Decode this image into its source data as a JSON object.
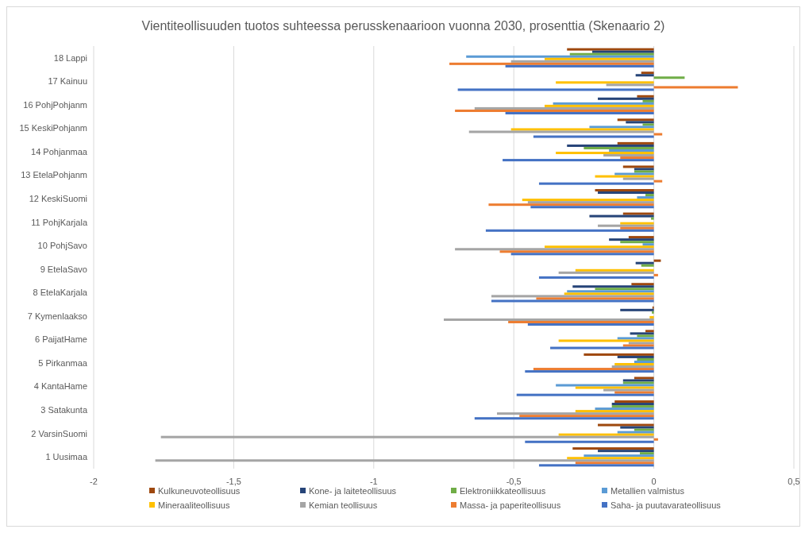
{
  "chart_data": {
    "type": "bar",
    "orientation": "horizontal",
    "title": "Vientiteollisuuden tuotos suhteessa perusskenaarioon vuonna 2030, prosenttia (Skenaario 2)",
    "categories": [
      "18 Lappi",
      "17 Kainuu",
      "16 PohjPohjanm",
      "15 KeskiPohjanm",
      "14 Pohjanmaa",
      "13 EtelaPohjanm",
      "12 KeskiSuomi",
      "11 PohjKarjala",
      "10 PohjSavo",
      "9 EtelaSavo",
      "8 EtelaKarjala",
      "7 Kymenlaakso",
      "6 PaijatHame",
      "5 Pirkanmaa",
      "4 KantaHame",
      "3 Satakunta",
      "2 VarsinSuomi",
      "1 Uusimaa"
    ],
    "series": [
      {
        "name": "Kulkuneuvoteollisuus",
        "color": "#9e480e",
        "values": [
          -0.31,
          -0.045,
          -0.06,
          -0.13,
          -0.13,
          -0.11,
          -0.21,
          -0.11,
          -0.09,
          0.025,
          -0.08,
          -0.005,
          -0.03,
          -0.25,
          -0.07,
          -0.14,
          -0.2,
          -0.29
        ]
      },
      {
        "name": "Kone- ja laiteteollisuus",
        "color": "#264478",
        "values": [
          -0.22,
          -0.065,
          -0.2,
          -0.1,
          -0.31,
          -0.07,
          -0.2,
          -0.23,
          -0.16,
          -0.065,
          -0.29,
          -0.12,
          -0.085,
          -0.13,
          -0.11,
          -0.15,
          -0.12,
          -0.2
        ]
      },
      {
        "name": "Elektroniikkateollisuus",
        "color": "#70ad47",
        "values": [
          -0.3,
          0.11,
          -0.04,
          -0.04,
          -0.25,
          -0.07,
          -0.03,
          -0.01,
          -0.12,
          -0.045,
          -0.21,
          -0.007,
          -0.06,
          -0.06,
          -0.11,
          -0.15,
          -0.07,
          -0.05
        ]
      },
      {
        "name": "Metallien valmistus",
        "color": "#5b9bd5",
        "values": [
          -0.67,
          0,
          -0.36,
          -0.23,
          -0.16,
          -0.14,
          -0.06,
          0,
          -0.04,
          0,
          -0.31,
          0,
          -0.13,
          -0.07,
          -0.35,
          -0.21,
          -0.13,
          -0.25
        ]
      },
      {
        "name": "Mineraaliteollisuus",
        "color": "#ffc000",
        "values": [
          -0.39,
          -0.35,
          -0.39,
          -0.51,
          -0.35,
          -0.21,
          -0.47,
          -0.12,
          -0.39,
          -0.28,
          -0.32,
          -0.015,
          -0.34,
          -0.14,
          -0.28,
          -0.28,
          -0.34,
          -0.31
        ]
      },
      {
        "name": "Kemian teollisuus",
        "color": "#a5a5a5",
        "values": [
          -0.51,
          -0.17,
          -0.64,
          -0.66,
          -0.18,
          -0.11,
          -0.45,
          -0.2,
          -0.71,
          -0.34,
          -0.58,
          -0.75,
          -0.09,
          -0.15,
          -0.18,
          -0.56,
          -1.76,
          -1.78
        ]
      },
      {
        "name": "Massa- ja paperiteollisuus",
        "color": "#ed7d31",
        "values": [
          -0.73,
          0.3,
          -0.71,
          0.03,
          -0.12,
          0.03,
          -0.59,
          -0.12,
          -0.55,
          0.015,
          -0.42,
          -0.52,
          -0.11,
          -0.43,
          -0.14,
          -0.48,
          0.015,
          -0.28
        ]
      },
      {
        "name": "Saha- ja puutavarateollisuus",
        "color": "#4472c4",
        "values": [
          -0.53,
          -0.7,
          -0.53,
          -0.43,
          -0.54,
          -0.41,
          -0.44,
          -0.6,
          -0.51,
          -0.41,
          -0.58,
          -0.45,
          -0.37,
          -0.46,
          -0.49,
          -0.64,
          -0.46,
          -0.41
        ]
      }
    ],
    "xlim": [
      -2,
      0.5
    ],
    "xticks": [
      -2,
      {
        "value": -1.5,
        "label": "-1,5"
      },
      -1,
      {
        "value": -0.5,
        "label": "-0,5"
      },
      0,
      {
        "value": 0.5,
        "label": "0,5"
      }
    ],
    "grid": "x",
    "legend": "bottom"
  }
}
